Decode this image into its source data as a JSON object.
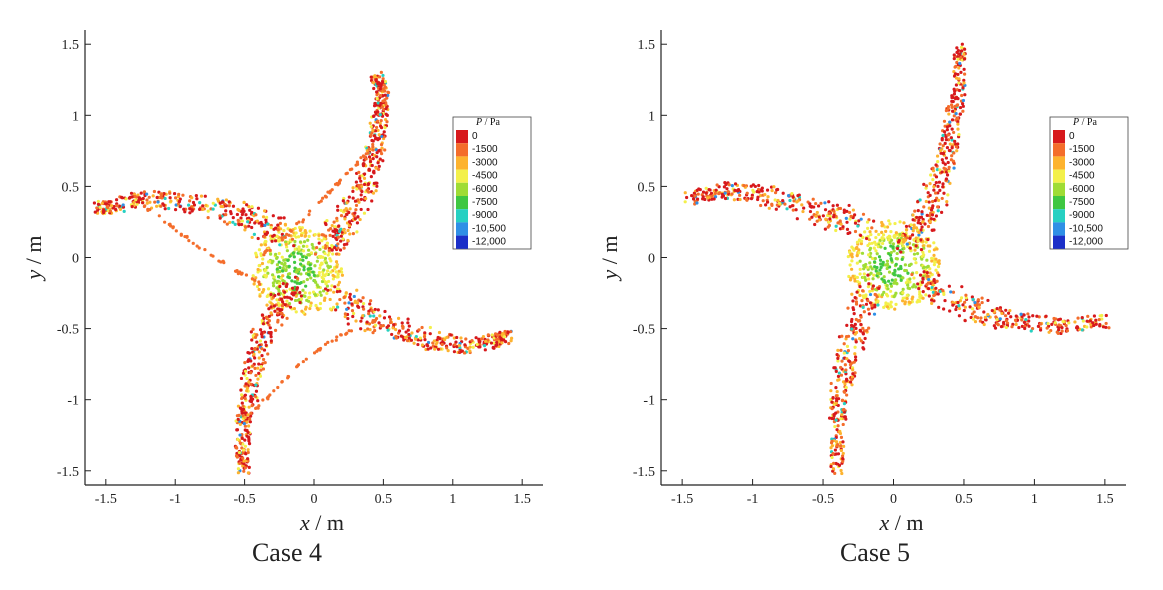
{
  "chart_data": [
    {
      "type": "scatter",
      "caption": "Case 4",
      "xlabel_var": "x",
      "xlabel_unit": "/ m",
      "ylabel_var": "y",
      "ylabel_unit": "/ m",
      "xlim": [
        -1.65,
        1.65
      ],
      "ylim": [
        -1.6,
        1.6
      ],
      "xticks": [
        -1.5,
        -1,
        -0.5,
        0,
        0.5,
        1,
        1.5
      ],
      "xtick_labels": [
        "-1.5",
        "-1",
        "-0.5",
        "0",
        "0.5",
        "1",
        "1.5"
      ],
      "yticks": [
        -1.5,
        -1,
        -0.5,
        0,
        0.5,
        1,
        1.5
      ],
      "ytick_labels": [
        "-1.5",
        "-1",
        "-0.5",
        "0",
        "0.5",
        "1",
        "1.5"
      ],
      "legend": {
        "title_var": "P",
        "title_unit": "/ Pa",
        "placement": "right",
        "levels": [
          "0",
          "-1500",
          "-3000",
          "-4500",
          "-6000",
          "-7500",
          "-9000",
          "-10,500",
          "-12,000"
        ],
        "colors": [
          "#d7191c",
          "#f46d2b",
          "#fdb32f",
          "#f3f04a",
          "#9fdc35",
          "#3fc742",
          "#26d0c2",
          "#2f8fe6",
          "#1b2fc8"
        ]
      },
      "series": [
        {
          "arm": "upper-right",
          "points": [
            [
              0.1,
              0.08
            ],
            [
              0.2,
              0.2
            ],
            [
              0.3,
              0.38
            ],
            [
              0.4,
              0.58
            ],
            [
              0.45,
              0.8
            ],
            [
              0.48,
              1.0
            ],
            [
              0.5,
              1.15
            ],
            [
              0.45,
              1.27
            ]
          ]
        },
        {
          "arm": "left",
          "points": [
            [
              -0.2,
              0.15
            ],
            [
              -0.4,
              0.25
            ],
            [
              -0.6,
              0.32
            ],
            [
              -0.9,
              0.38
            ],
            [
              -1.2,
              0.42
            ],
            [
              -1.45,
              0.36
            ],
            [
              -1.55,
              0.35
            ]
          ]
        },
        {
          "arm": "lower-left",
          "points": [
            [
              -0.15,
              -0.2
            ],
            [
              -0.3,
              -0.4
            ],
            [
              -0.4,
              -0.6
            ],
            [
              -0.45,
              -0.85
            ],
            [
              -0.5,
              -1.1
            ],
            [
              -0.52,
              -1.3
            ],
            [
              -0.5,
              -1.5
            ]
          ]
        },
        {
          "arm": "right",
          "points": [
            [
              0.15,
              -0.25
            ],
            [
              0.35,
              -0.4
            ],
            [
              0.6,
              -0.5
            ],
            [
              0.85,
              -0.58
            ],
            [
              1.1,
              -0.62
            ],
            [
              1.3,
              -0.58
            ],
            [
              1.4,
              -0.56
            ]
          ]
        },
        {
          "arm": "trail-upper",
          "points": [
            [
              -0.4,
              0.0
            ],
            [
              -0.2,
              0.15
            ],
            [
              0.0,
              0.35
            ],
            [
              0.15,
              0.5
            ],
            [
              0.3,
              0.65
            ],
            [
              0.42,
              0.78
            ]
          ]
        },
        {
          "arm": "trail-lower",
          "points": [
            [
              0.3,
              -0.5
            ],
            [
              0.1,
              -0.6
            ],
            [
              -0.1,
              -0.75
            ],
            [
              -0.3,
              -0.95
            ],
            [
              -0.45,
              -1.1
            ]
          ]
        },
        {
          "arm": "trail-left",
          "points": [
            [
              -0.35,
              -0.2
            ],
            [
              -0.55,
              -0.1
            ],
            [
              -0.8,
              0.05
            ],
            [
              -1.0,
              0.2
            ],
            [
              -1.2,
              0.35
            ]
          ]
        }
      ]
    },
    {
      "type": "scatter",
      "caption": "Case 5",
      "xlabel_var": "x",
      "xlabel_unit": "/ m",
      "ylabel_var": "y",
      "ylabel_unit": "/ m",
      "xlim": [
        -1.65,
        1.65
      ],
      "ylim": [
        -1.6,
        1.6
      ],
      "xticks": [
        -1.5,
        -1,
        -0.5,
        0,
        0.5,
        1,
        1.5
      ],
      "xtick_labels": [
        "-1.5",
        "-1",
        "-0.5",
        "0",
        "0.5",
        "1",
        "1.5"
      ],
      "yticks": [
        -1.5,
        -1,
        -0.5,
        0,
        0.5,
        1,
        1.5
      ],
      "ytick_labels": [
        "-1.5",
        "-1",
        "-0.5",
        "0",
        "0.5",
        "1",
        "1.5"
      ],
      "legend": {
        "title_var": "P",
        "title_unit": "/ Pa",
        "placement": "right",
        "levels": [
          "0",
          "-1500",
          "-3000",
          "-4500",
          "-6000",
          "-7500",
          "-9000",
          "-10,500",
          "-12,000"
        ],
        "colors": [
          "#d7191c",
          "#f46d2b",
          "#fdb32f",
          "#f3f04a",
          "#9fdc35",
          "#3fc742",
          "#26d0c2",
          "#2f8fe6",
          "#1b2fc8"
        ]
      },
      "series": [
        {
          "arm": "upper-right",
          "points": [
            [
              0.1,
              0.1
            ],
            [
              0.2,
              0.25
            ],
            [
              0.3,
              0.45
            ],
            [
              0.38,
              0.7
            ],
            [
              0.42,
              0.95
            ],
            [
              0.46,
              1.2
            ],
            [
              0.47,
              1.48
            ]
          ]
        },
        {
          "arm": "left",
          "points": [
            [
              -0.2,
              0.2
            ],
            [
              -0.45,
              0.3
            ],
            [
              -0.7,
              0.38
            ],
            [
              -0.95,
              0.45
            ],
            [
              -1.2,
              0.47
            ],
            [
              -1.45,
              0.42
            ]
          ]
        },
        {
          "arm": "lower-left",
          "points": [
            [
              -0.15,
              -0.2
            ],
            [
              -0.25,
              -0.45
            ],
            [
              -0.32,
              -0.7
            ],
            [
              -0.38,
              -0.95
            ],
            [
              -0.4,
              -1.2
            ],
            [
              -0.4,
              -1.5
            ]
          ]
        },
        {
          "arm": "right",
          "points": [
            [
              0.2,
              -0.15
            ],
            [
              0.4,
              -0.3
            ],
            [
              0.65,
              -0.4
            ],
            [
              0.9,
              -0.45
            ],
            [
              1.2,
              -0.48
            ],
            [
              1.5,
              -0.45
            ]
          ]
        }
      ]
    }
  ]
}
